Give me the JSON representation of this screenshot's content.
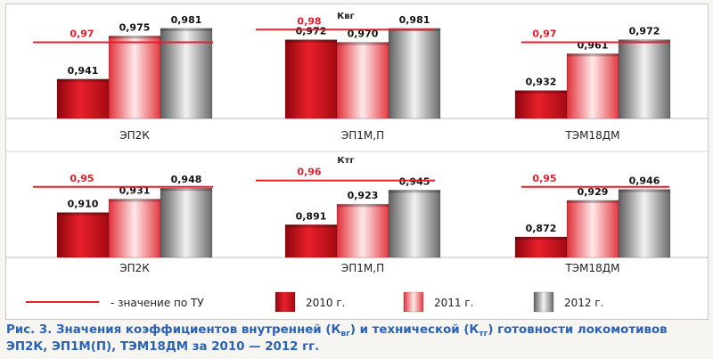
{
  "chart_data": [
    {
      "type": "bar",
      "title": "Квг",
      "categories": [
        "ЭП2К",
        "ЭП1М,П",
        "ТЭМ18ДМ"
      ],
      "series": [
        {
          "name": "2010 г.",
          "values": [
            0.941,
            0.972,
            0.932
          ]
        },
        {
          "name": "2011 г.",
          "values": [
            0.975,
            0.97,
            0.961
          ]
        },
        {
          "name": "2012 г.",
          "values": [
            0.981,
            0.981,
            0.972
          ]
        }
      ],
      "norms": [
        0.97,
        0.98,
        0.97
      ],
      "norm_labels": [
        "0,97",
        "0,98",
        "0,97"
      ],
      "value_labels": [
        [
          "0,941",
          "0,975",
          "0,981"
        ],
        [
          "0,972",
          "0,970",
          "0,981"
        ],
        [
          "0,932",
          "0,961",
          "0,972"
        ]
      ],
      "ylim": [
        0.91,
        0.99
      ]
    },
    {
      "type": "bar",
      "title": "Ктг",
      "categories": [
        "ЭП2К",
        "ЭП1М,П",
        "ТЭМ18ДМ"
      ],
      "series": [
        {
          "name": "2010 г.",
          "values": [
            0.91,
            0.891,
            0.872
          ]
        },
        {
          "name": "2011 г.",
          "values": [
            0.931,
            0.923,
            0.929
          ]
        },
        {
          "name": "2012 г.",
          "values": [
            0.948,
            0.945,
            0.946
          ]
        }
      ],
      "norms": [
        0.95,
        0.96,
        0.95
      ],
      "norm_labels": [
        "0,95",
        "0,96",
        "0,95"
      ],
      "value_labels": [
        [
          "0,910",
          "0,931",
          "0,948"
        ],
        [
          "0,891",
          "0,923",
          "0,945"
        ],
        [
          "0,872",
          "0,929",
          "0,946"
        ]
      ],
      "ylim": [
        0.84,
        0.99
      ]
    }
  ],
  "legend": {
    "norm_label": "- значение по ТУ",
    "items": [
      "2010 г.",
      "2011 г.",
      "2012 г."
    ]
  },
  "caption": {
    "part1": "Рис. 3. Значения коэффициентов внутренней (К",
    "sub1": "вг",
    "part2": ") и технической (К",
    "sub2": "тг",
    "part3": ") готовности локомотивов ЭП2К, ЭП1М(П), ТЭМ18ДМ за 2010 — 2012 гг."
  },
  "colors": {
    "norm_line": "#e4202b",
    "series_2010": "#d3121e",
    "series_2011": "#f26d6d",
    "series_2012": "#9c9c9c"
  }
}
